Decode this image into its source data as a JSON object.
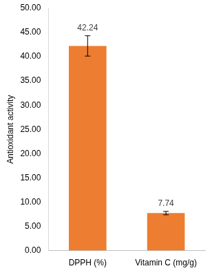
{
  "chart_data": {
    "type": "bar",
    "y_label": "Antioxidant activity",
    "categories": [
      "DPPH (%)",
      "Vitamin C (mg/g)"
    ],
    "values": [
      42.24,
      7.74
    ],
    "errors": [
      2.1,
      0.35
    ],
    "color": "#ed7d31",
    "ylim": [
      0,
      50
    ],
    "yticks": [
      {
        "value": 0,
        "label": "0.00"
      },
      {
        "value": 5,
        "label": "5.00"
      },
      {
        "value": 10,
        "label": "10.00"
      },
      {
        "value": 15,
        "label": "15.00"
      },
      {
        "value": 20,
        "label": "20.00"
      },
      {
        "value": 25,
        "label": "25.00"
      },
      {
        "value": 30,
        "label": "30.00"
      },
      {
        "value": 35,
        "label": "35.00"
      },
      {
        "value": 40,
        "label": "40.00"
      },
      {
        "value": 45,
        "label": "45.00"
      },
      {
        "value": 50,
        "label": "50.00"
      }
    ],
    "grid": false,
    "data_labels": true
  }
}
